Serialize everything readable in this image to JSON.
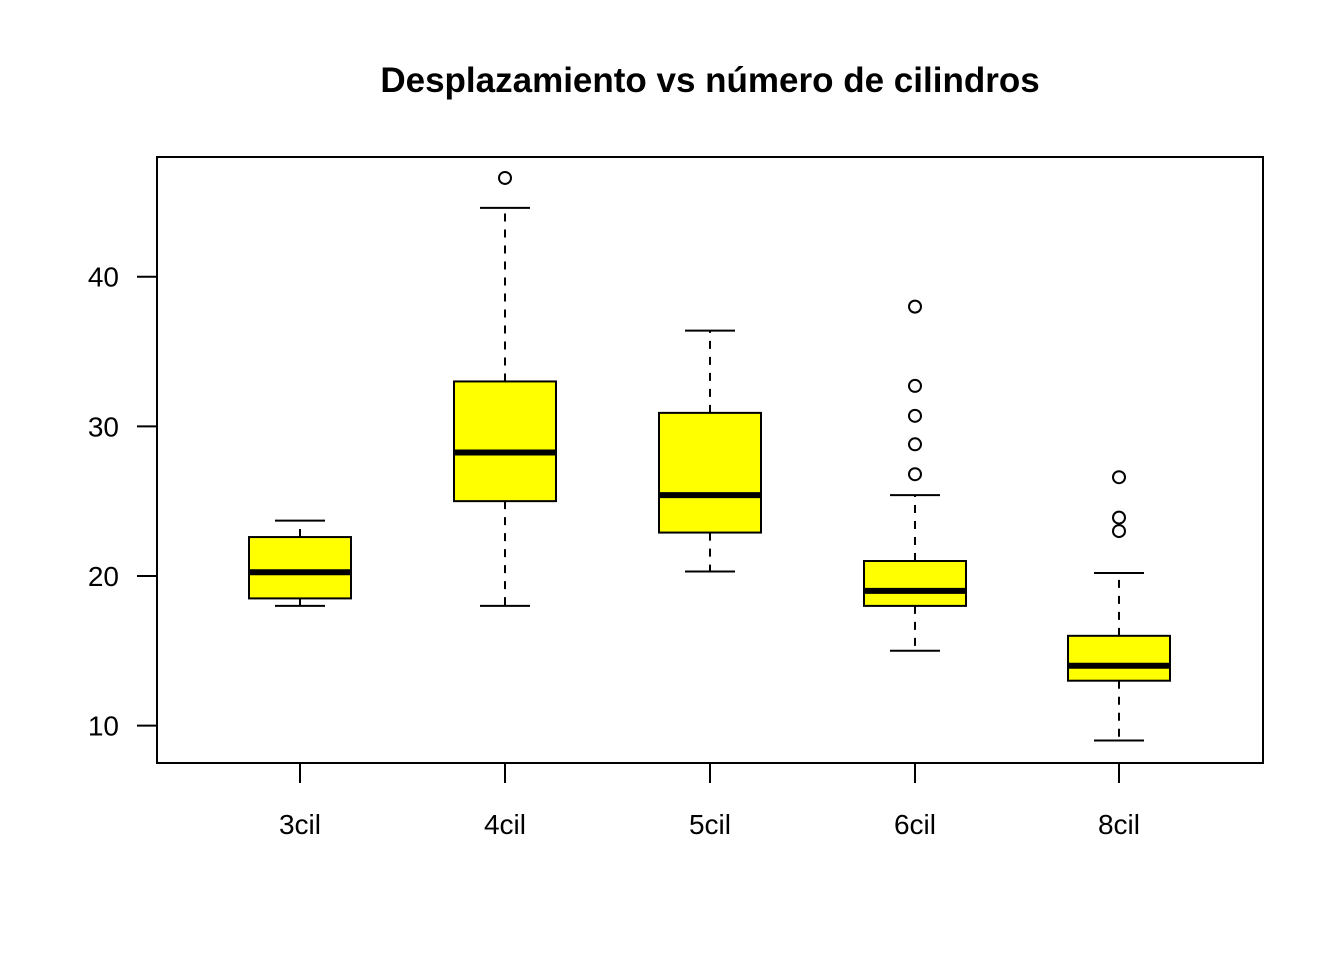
{
  "chart_data": {
    "type": "boxplot",
    "title": "Desplazamiento vs número de cilindros",
    "xlabel": "",
    "ylabel": "",
    "ylim": [
      7.5,
      48.0
    ],
    "y_ticks": [
      10,
      20,
      30,
      40
    ],
    "y_tick_labels": [
      "10",
      "20",
      "30",
      "40"
    ],
    "grid": false,
    "legend": "none",
    "box_color": "#FFFF00",
    "categories": [
      "3cil",
      "4cil",
      "5cil",
      "6cil",
      "8cil"
    ],
    "boxes": [
      {
        "name": "3cil",
        "whisker_low": 18.0,
        "q1": 18.5,
        "median": 20.25,
        "q3": 22.6,
        "whisker_high": 23.7,
        "outliers": []
      },
      {
        "name": "4cil",
        "whisker_low": 18.0,
        "q1": 25.0,
        "median": 28.25,
        "q3": 33.0,
        "whisker_high": 44.6,
        "outliers": [
          46.6
        ]
      },
      {
        "name": "5cil",
        "whisker_low": 20.3,
        "q1": 22.9,
        "median": 25.4,
        "q3": 30.9,
        "whisker_high": 36.4,
        "outliers": []
      },
      {
        "name": "6cil",
        "whisker_low": 15.0,
        "q1": 18.0,
        "median": 19.0,
        "q3": 21.0,
        "whisker_high": 25.4,
        "outliers": [
          26.8,
          28.8,
          30.7,
          32.7,
          38.0
        ]
      },
      {
        "name": "8cil",
        "whisker_low": 9.0,
        "q1": 13.0,
        "median": 14.0,
        "q3": 16.0,
        "whisker_high": 20.2,
        "outliers": [
          23.0,
          23.9,
          26.6
        ]
      }
    ]
  }
}
